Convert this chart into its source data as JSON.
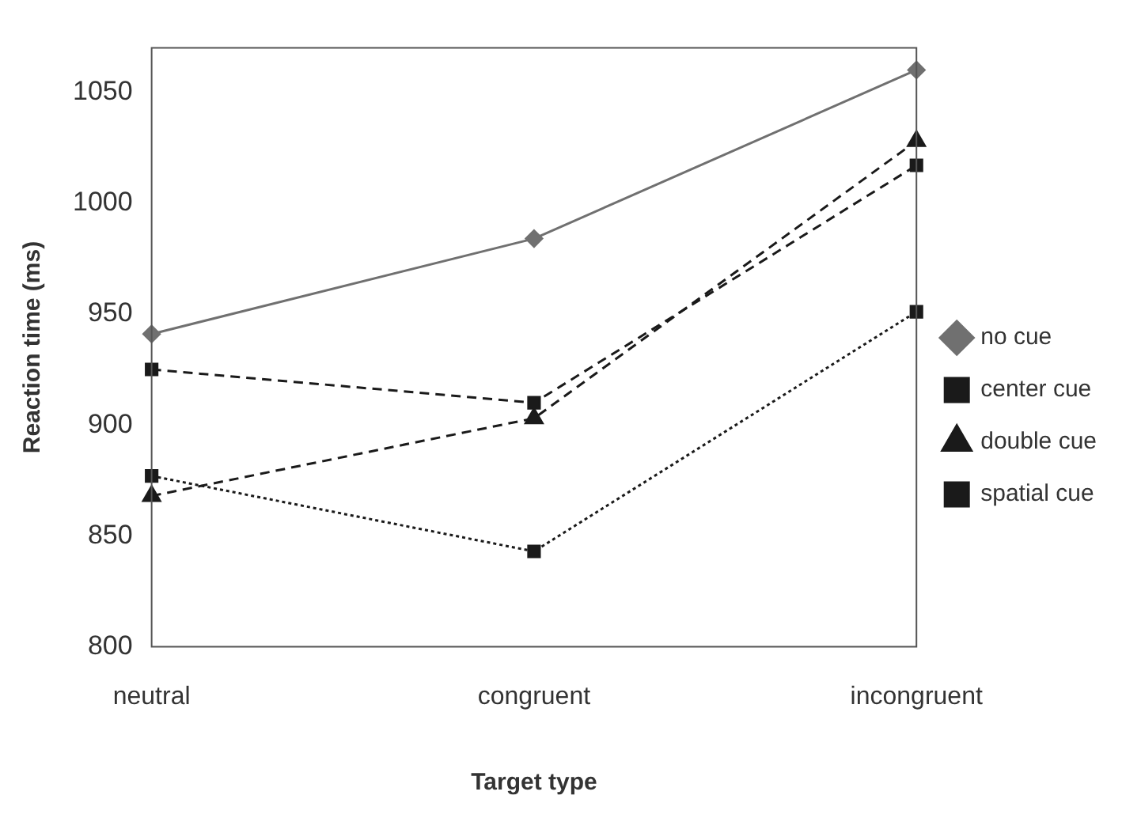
{
  "chart_data": {
    "type": "line",
    "xlabel": "Target type",
    "ylabel": "Reaction time (ms)",
    "categories": [
      "neutral",
      "congruent",
      "incongruent"
    ],
    "series": [
      {
        "name": "no cue",
        "color": "#707070",
        "marker": "diamond",
        "line_style": "solid",
        "values": [
          941,
          984,
          1060
        ]
      },
      {
        "name": "center cue",
        "color": "#1a1a1a",
        "marker": "square",
        "line_style": "dashed",
        "values": [
          925,
          910,
          1017
        ]
      },
      {
        "name": "double cue",
        "color": "#1a1a1a",
        "marker": "triangle",
        "line_style": "dashed",
        "values": [
          868,
          903,
          1028
        ]
      },
      {
        "name": "spatial cue",
        "color": "#1a1a1a",
        "marker": "square",
        "line_style": "dotted",
        "values": [
          877,
          843,
          951
        ]
      }
    ],
    "ylim": [
      800,
      1070
    ],
    "yticks": [
      800,
      850,
      900,
      950,
      1000,
      1050
    ],
    "grid": false,
    "legend": "right"
  }
}
